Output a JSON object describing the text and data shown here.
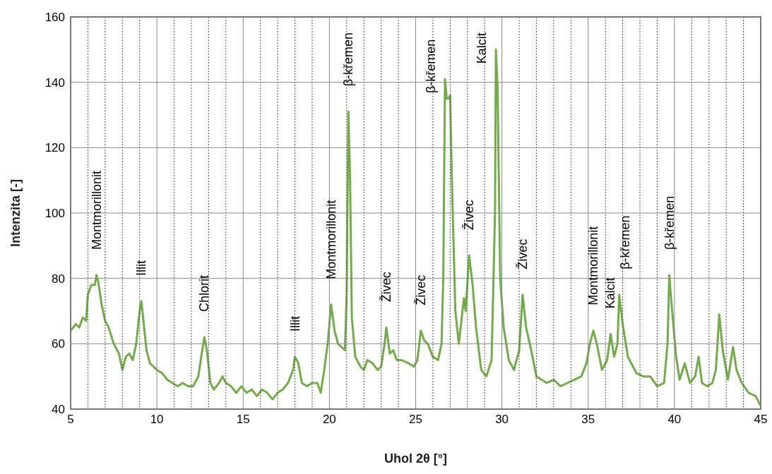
{
  "chart_data": {
    "type": "line",
    "xlabel": "Uhol 2θ [°]",
    "ylabel": "Intenzita  [-]",
    "x": [
      5.0,
      5.3,
      5.5,
      5.7,
      5.9,
      6.0,
      6.2,
      6.4,
      6.5,
      6.6,
      6.8,
      7.0,
      7.2,
      7.5,
      7.8,
      8.0,
      8.2,
      8.4,
      8.6,
      8.8,
      9.0,
      9.1,
      9.2,
      9.4,
      9.6,
      9.8,
      10.0,
      10.3,
      10.6,
      10.9,
      11.2,
      11.5,
      11.8,
      12.1,
      12.4,
      12.6,
      12.75,
      12.9,
      13.1,
      13.3,
      13.6,
      13.8,
      14.0,
      14.3,
      14.6,
      14.9,
      15.2,
      15.5,
      15.8,
      16.1,
      16.4,
      16.7,
      17.0,
      17.3,
      17.6,
      17.9,
      18.0,
      18.2,
      18.4,
      18.7,
      19.0,
      19.3,
      19.5,
      19.7,
      19.9,
      20.1,
      20.3,
      20.5,
      20.7,
      20.9,
      21.0,
      21.1,
      21.2,
      21.3,
      21.5,
      21.8,
      22.0,
      22.2,
      22.5,
      22.8,
      23.0,
      23.2,
      23.3,
      23.5,
      23.7,
      23.9,
      24.2,
      24.6,
      24.9,
      25.1,
      25.3,
      25.5,
      25.7,
      26.0,
      26.3,
      26.5,
      26.6,
      26.7,
      26.8,
      26.9,
      27.0,
      27.1,
      27.3,
      27.5,
      27.8,
      27.9,
      28.1,
      28.3,
      28.5,
      28.8,
      29.1,
      29.4,
      29.6,
      29.65,
      29.75,
      29.9,
      30.1,
      30.4,
      30.7,
      31.0,
      31.2,
      31.4,
      31.7,
      32.0,
      32.3,
      32.6,
      33.0,
      33.4,
      33.8,
      34.2,
      34.6,
      34.9,
      35.1,
      35.3,
      35.5,
      35.8,
      36.1,
      36.3,
      36.5,
      36.7,
      36.8,
      37.0,
      37.3,
      37.8,
      38.2,
      38.6,
      39.0,
      39.4,
      39.6,
      39.7,
      39.9,
      40.1,
      40.3,
      40.6,
      40.9,
      41.2,
      41.4,
      41.6,
      41.9,
      42.2,
      42.4,
      42.6,
      42.8,
      43.1,
      43.4,
      43.6,
      43.9,
      44.3,
      44.7,
      45.0
    ],
    "series": [
      {
        "color": "#70ad47",
        "values": [
          64,
          66,
          65,
          68,
          67,
          75,
          78,
          78,
          81,
          79,
          72,
          67,
          65,
          60,
          57,
          52,
          56,
          57,
          55,
          60,
          70,
          73,
          68,
          58,
          54,
          53,
          52,
          51,
          49,
          48,
          47,
          48,
          47,
          47,
          50,
          57,
          62,
          58,
          48,
          46,
          48,
          50,
          48,
          47,
          45,
          47,
          45,
          46,
          44,
          46,
          45,
          43,
          45,
          46,
          48,
          52,
          56,
          54,
          48,
          47,
          48,
          48,
          45,
          52,
          60,
          72,
          64,
          60,
          59,
          58,
          75,
          131,
          110,
          68,
          56,
          53,
          52,
          55,
          54,
          52,
          53,
          60,
          65,
          57,
          58,
          55,
          55,
          54,
          53,
          55,
          64,
          61,
          60,
          56,
          55,
          60,
          80,
          141,
          135,
          135,
          136,
          110,
          70,
          60,
          74,
          70,
          87,
          78,
          65,
          52,
          50,
          55,
          100,
          150,
          138,
          80,
          65,
          55,
          52,
          58,
          75,
          65,
          58,
          50,
          49,
          48,
          49,
          47,
          48,
          49,
          50,
          54,
          60,
          64,
          60,
          52,
          55,
          63,
          56,
          60,
          75,
          66,
          56,
          51,
          50,
          50,
          47,
          48,
          60,
          81,
          68,
          56,
          49,
          54,
          48,
          50,
          56,
          48,
          47,
          48,
          52,
          69,
          58,
          49,
          59,
          52,
          48,
          45,
          44,
          41
        ]
      }
    ],
    "xlim": [
      5,
      45
    ],
    "xticks": [
      5,
      {
        "value": 6,
        "label": null
      },
      {
        "value": 7,
        "label": null
      },
      {
        "value": 8,
        "label": null
      },
      {
        "value": 9,
        "label": null
      },
      10,
      {
        "value": 11,
        "label": null
      },
      {
        "value": 12,
        "label": null
      },
      {
        "value": 13,
        "label": null
      },
      {
        "value": 14,
        "label": null
      },
      15,
      {
        "value": 16,
        "label": null
      },
      {
        "value": 17,
        "label": null
      },
      {
        "value": 18,
        "label": null
      },
      {
        "value": 19,
        "label": null
      },
      20,
      {
        "value": 21,
        "label": null
      },
      {
        "value": 22,
        "label": null
      },
      {
        "value": 23,
        "label": null
      },
      {
        "value": 24,
        "label": null
      },
      25,
      {
        "value": 26,
        "label": null
      },
      {
        "value": 27,
        "label": null
      },
      {
        "value": 28,
        "label": null
      },
      {
        "value": 29,
        "label": null
      },
      30,
      {
        "value": 31,
        "label": null
      },
      {
        "value": 32,
        "label": null
      },
      {
        "value": 33,
        "label": null
      },
      {
        "value": 34,
        "label": null
      },
      35,
      {
        "value": 36,
        "label": null
      },
      {
        "value": 37,
        "label": null
      },
      {
        "value": 38,
        "label": null
      },
      {
        "value": 39,
        "label": null
      },
      40,
      {
        "value": 41,
        "label": null
      },
      {
        "value": 42,
        "label": null
      },
      {
        "value": 43,
        "label": null
      },
      {
        "value": 44,
        "label": null
      },
      45
    ],
    "ylim": [
      40,
      160
    ],
    "yticks": [
      40,
      60,
      80,
      100,
      120,
      140,
      160
    ],
    "grid": true,
    "marker": "none",
    "line_style": "solid",
    "annotations": [
      {
        "text": "Montmorillonit",
        "x": 6.5,
        "y": 81
      },
      {
        "text": "Illit",
        "x": 9.1,
        "y": 73
      },
      {
        "text": "Chlorit",
        "x": 12.75,
        "y": 62
      },
      {
        "text": "Illit",
        "x": 18.0,
        "y": 56
      },
      {
        "text": "Montmorillonit",
        "x": 20.1,
        "y": 72
      },
      {
        "text": "β-křemen",
        "x": 21.1,
        "y": 131
      },
      {
        "text": "Živec",
        "x": 23.3,
        "y": 65
      },
      {
        "text": "Živec",
        "x": 25.3,
        "y": 64
      },
      {
        "text": "β-křemen",
        "x": 26.7,
        "y": 141
      },
      {
        "text": "Živec",
        "x": 28.1,
        "y": 87
      },
      {
        "text": "Kalcit",
        "x": 29.65,
        "y": 150
      },
      {
        "text": "Živec",
        "x": 31.2,
        "y": 75
      },
      {
        "text": "Montmorillonit",
        "x": 35.3,
        "y": 64
      },
      {
        "text": "Kalcit",
        "x": 36.3,
        "y": 63
      },
      {
        "text": "β-křemen",
        "x": 36.8,
        "y": 75
      },
      {
        "text": "β-křemen",
        "x": 39.7,
        "y": 81
      }
    ]
  }
}
